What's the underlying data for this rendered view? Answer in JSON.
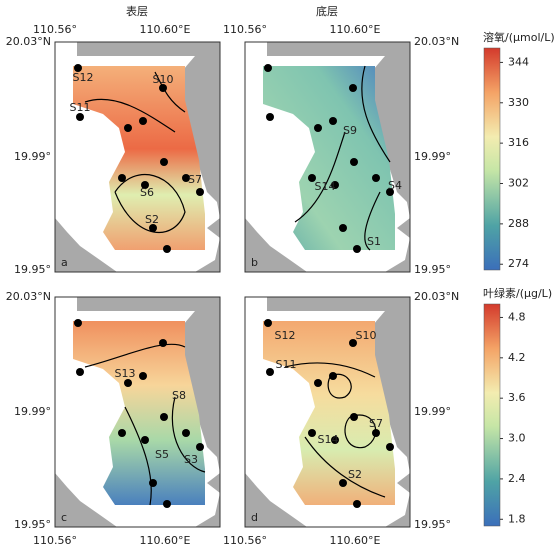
{
  "column_titles": [
    "表层",
    "底层"
  ],
  "lon_labels": [
    "110.56°",
    "110.60°E"
  ],
  "lat_labels": [
    "20.03°N",
    "19.99°",
    "19.95°"
  ],
  "panels": [
    {
      "letter": "a",
      "stations": [
        "S12",
        "S10",
        "S11",
        "S6",
        "S7",
        "S2"
      ]
    },
    {
      "letter": "b",
      "stations": [
        "S9",
        "S14",
        "S4",
        "S1"
      ]
    },
    {
      "letter": "c",
      "stations": [
        "S13",
        "S8",
        "S5",
        "S3"
      ]
    },
    {
      "letter": "d",
      "stations": [
        "S12",
        "S10",
        "S11",
        "S7",
        "S14",
        "S2"
      ]
    }
  ],
  "colorbars": [
    {
      "title": "溶氧/(μmol/L)",
      "range": [
        272,
        349
      ],
      "ticks": [
        274,
        288,
        302,
        316,
        330,
        344
      ]
    },
    {
      "title": "叶绿素/(μg/L)",
      "range": [
        1.7,
        5.0
      ],
      "ticks": [
        1.8,
        2.4,
        {
          "value": 3,
          "label": "3.0"
        },
        3.6,
        4.2,
        4.8
      ]
    }
  ]
}
